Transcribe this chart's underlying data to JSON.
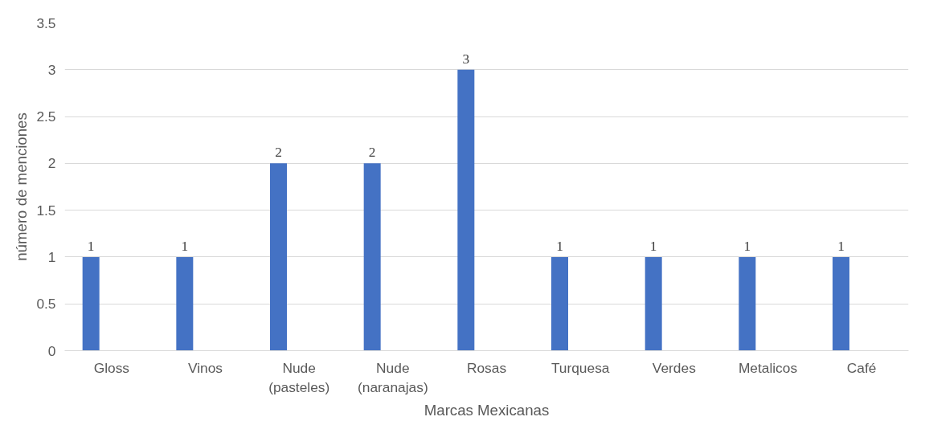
{
  "chart_data": {
    "type": "bar",
    "xlabel": "Marcas Mexicanas",
    "ylabel": "número de menciones",
    "categories": [
      "Gloss",
      "Vinos",
      "Nude (pasteles)",
      "Nude (naranajas)",
      "Rosas",
      "Turquesa",
      "Verdes",
      "Metalicos",
      "Café"
    ],
    "values": [
      1,
      1,
      2,
      2,
      3,
      1,
      1,
      1,
      1
    ],
    "color": "#4472c4",
    "ylim": [
      0,
      3.5
    ],
    "yticks": [
      0,
      0.5,
      1,
      1.5,
      2,
      2.5,
      3,
      3.5
    ],
    "grid": "y",
    "data_labels": true
  }
}
